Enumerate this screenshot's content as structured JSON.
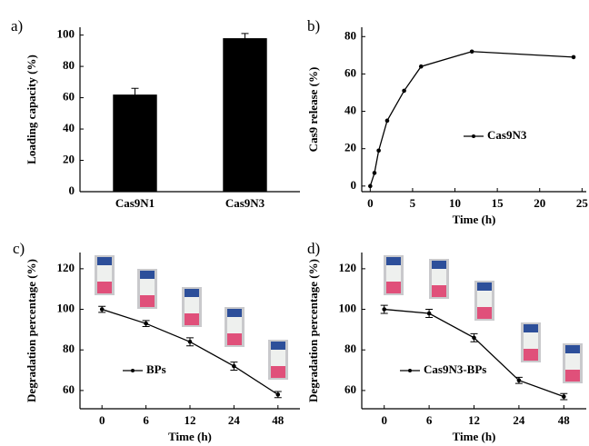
{
  "chart_data": [
    {
      "type": "bar",
      "panel_label": "a)",
      "ylabel": "Loading capacity (%)",
      "categories": [
        "Cas9N1",
        "Cas9N3"
      ],
      "values": [
        62,
        98
      ],
      "errors": [
        4,
        3
      ],
      "color": "#000000",
      "ylim": [
        0,
        105
      ],
      "yticks": [
        0,
        20,
        40,
        60,
        80,
        100
      ]
    },
    {
      "type": "line",
      "panel_label": "b)",
      "xlabel": "Time (h)",
      "ylabel": "Cas9 release (%)",
      "x": [
        0,
        0.5,
        1,
        2,
        4,
        6,
        12,
        24
      ],
      "series": [
        {
          "name": "Cas9N3",
          "color": "#000000",
          "values": [
            0,
            7,
            19,
            35,
            51,
            64,
            72,
            69
          ]
        }
      ],
      "xlim": [
        -1,
        25.5
      ],
      "xticks": [
        0,
        5,
        10,
        15,
        20,
        25
      ],
      "ylim": [
        -3,
        85
      ],
      "yticks": [
        0,
        20,
        40,
        60,
        80
      ]
    },
    {
      "type": "line",
      "panel_label": "c)",
      "xlabel": "Time (h)",
      "ylabel": "Degradation percentage (%)",
      "categories": [
        "0",
        "6",
        "12",
        "24",
        "48"
      ],
      "series": [
        {
          "name": "BPs",
          "color": "#000000",
          "values": [
            100,
            93,
            84,
            72,
            58
          ],
          "errors": [
            1.5,
            1.5,
            2,
            2,
            1.5
          ]
        }
      ],
      "ylim": [
        51,
        128
      ],
      "yticks": [
        60,
        80,
        100,
        120
      ]
    },
    {
      "type": "line",
      "panel_label": "d)",
      "xlabel": "Time (h)",
      "ylabel": "Degradation percentage (%)",
      "categories": [
        "0",
        "6",
        "12",
        "24",
        "48"
      ],
      "series": [
        {
          "name": "Cas9N3-BPs",
          "color": "#000000",
          "values": [
            100,
            98,
            86,
            65,
            57
          ],
          "errors": [
            2,
            2,
            2,
            1.5,
            1.5
          ]
        }
      ],
      "ylim": [
        51,
        128
      ],
      "yticks": [
        60,
        80,
        100,
        120
      ]
    }
  ]
}
